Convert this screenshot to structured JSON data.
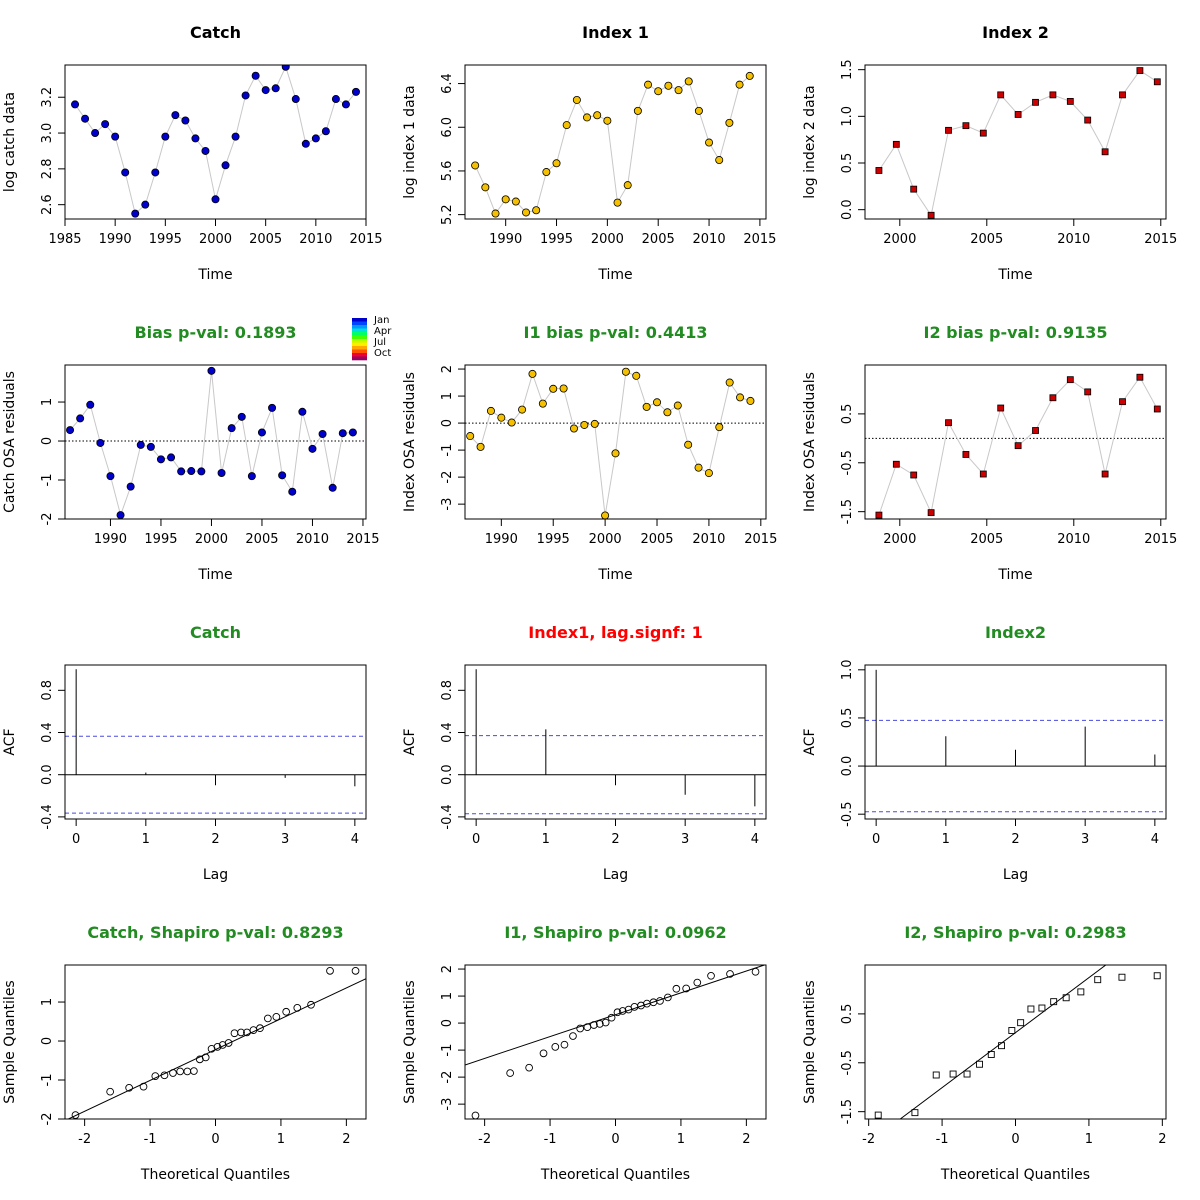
{
  "colors": {
    "catch": "#0000cc",
    "index1": "#f5c000",
    "index2": "#cc0000",
    "title_default": "#000000",
    "title_ok": "#228b22",
    "title_warn": "#ff0000",
    "ci_line": "#4a4ae0",
    "connector": "#c8c8c8"
  },
  "season_legend": {
    "labels": [
      "Jan",
      "Apr",
      "Jul",
      "Oct"
    ],
    "colors": [
      "#0000cc",
      "#0044ff",
      "#0099ff",
      "#00dddd",
      "#00ff66",
      "#44ff00",
      "#bbff00",
      "#ffee00",
      "#ffaa00",
      "#ff5500",
      "#ee0033",
      "#990066"
    ]
  },
  "chart_data": [
    {
      "id": "catch-data",
      "type": "scatter",
      "title": "Catch",
      "title_color": "title_default",
      "xlabel": "Time",
      "ylabel": "log catch data",
      "xlim": [
        1985,
        2015
      ],
      "ylim": [
        2.52,
        3.38
      ],
      "xticks": [
        1985,
        1990,
        1995,
        2000,
        2005,
        2010,
        2015
      ],
      "yticks": [
        2.6,
        2.8,
        3.0,
        3.2
      ],
      "ytick_labels": [
        "2.6",
        "2.8",
        "3.0",
        "3.2"
      ],
      "marker": "circle",
      "color_key": "catch",
      "connect": true,
      "series": [
        {
          "x": [
            1986,
            1987,
            1988,
            1989,
            1990,
            1991,
            1992,
            1993,
            1994,
            1995,
            1996,
            1997,
            1998,
            1999,
            2000,
            2001,
            2002,
            2003,
            2004,
            2005,
            2006,
            2007,
            2008,
            2009,
            2010,
            2011,
            2012,
            2013,
            2014
          ],
          "y": [
            3.16,
            3.08,
            3.0,
            3.05,
            2.98,
            2.78,
            2.55,
            2.6,
            2.78,
            2.98,
            3.1,
            3.07,
            2.97,
            2.9,
            2.63,
            2.82,
            2.98,
            3.21,
            3.32,
            3.24,
            3.25,
            3.37,
            3.19,
            2.94,
            2.97,
            3.01,
            3.19,
            3.16,
            3.23
          ]
        }
      ]
    },
    {
      "id": "index1-data",
      "type": "scatter",
      "title": "Index 1",
      "title_color": "title_default",
      "xlabel": "Time",
      "ylabel": "log index 1 data",
      "xlim": [
        1986,
        2015.6
      ],
      "ylim": [
        5.16,
        6.57
      ],
      "xticks": [
        1990,
        1995,
        2000,
        2005,
        2010,
        2015
      ],
      "yticks": [
        5.2,
        5.6,
        6.0,
        6.4
      ],
      "ytick_labels": [
        "5.2",
        "5.6",
        "6.0",
        "6.4"
      ],
      "marker": "circle",
      "color_key": "index1",
      "connect": true,
      "series": [
        {
          "x": [
            1987,
            1988,
            1989,
            1990,
            1991,
            1992,
            1993,
            1994,
            1995,
            1996,
            1997,
            1998,
            1999,
            2000,
            2001,
            2002,
            2003,
            2004,
            2005,
            2006,
            2007,
            2008,
            2009,
            2010,
            2011,
            2012,
            2013,
            2014
          ],
          "y": [
            5.65,
            5.45,
            5.21,
            5.34,
            5.32,
            5.22,
            5.24,
            5.59,
            5.67,
            6.02,
            6.25,
            6.09,
            6.11,
            6.06,
            5.31,
            5.47,
            6.15,
            6.39,
            6.33,
            6.38,
            6.34,
            6.42,
            6.15,
            5.86,
            5.7,
            6.04,
            6.39,
            6.47
          ]
        }
      ]
    },
    {
      "id": "index2-data",
      "type": "scatter",
      "title": "Index 2",
      "title_color": "title_default",
      "xlabel": "Time",
      "ylabel": "log index 2 data",
      "xlim": [
        1998,
        2015.3
      ],
      "ylim": [
        -0.1,
        1.55
      ],
      "xticks": [
        2000,
        2005,
        2010,
        2015
      ],
      "yticks": [
        0.0,
        0.5,
        1.0,
        1.5
      ],
      "ytick_labels": [
        "0.0",
        "0.5",
        "1.0",
        "1.5"
      ],
      "marker": "square",
      "color_key": "index2",
      "connect": true,
      "series": [
        {
          "x": [
            1998.8,
            1999.8,
            2000.8,
            2001.8,
            2002.8,
            2003.8,
            2004.8,
            2005.8,
            2006.8,
            2007.8,
            2008.8,
            2009.8,
            2010.8,
            2011.8,
            2012.8,
            2013.8,
            2014.8
          ],
          "y": [
            0.42,
            0.7,
            0.22,
            -0.06,
            0.85,
            0.9,
            0.82,
            1.23,
            1.02,
            1.15,
            1.23,
            1.16,
            0.96,
            0.62,
            1.23,
            1.49,
            1.37
          ]
        }
      ]
    },
    {
      "id": "catch-resid",
      "type": "scatter",
      "title": "Bias p-val: 0.1893",
      "title_color": "title_ok",
      "xlabel": "Time",
      "ylabel": "Catch OSA residuals",
      "xlim": [
        1985.5,
        2015.3
      ],
      "ylim": [
        -2.0,
        1.95
      ],
      "xticks": [
        1990,
        1995,
        2000,
        2005,
        2010,
        2015
      ],
      "yticks": [
        -2,
        -1,
        0,
        1
      ],
      "ytick_labels": [
        "-2",
        "-1",
        "0",
        "1"
      ],
      "marker": "circle",
      "color_key": "catch",
      "connect": true,
      "zero_line": true,
      "season_legend": true,
      "series": [
        {
          "x": [
            1986,
            1987,
            1988,
            1989,
            1990,
            1991,
            1992,
            1993,
            1994,
            1995,
            1996,
            1997,
            1998,
            1999,
            2000,
            2001,
            2002,
            2003,
            2004,
            2005,
            2006,
            2007,
            2008,
            2009,
            2010,
            2011,
            2012,
            2013,
            2014
          ],
          "y": [
            0.28,
            0.58,
            0.93,
            -0.05,
            -0.9,
            -1.9,
            -1.17,
            -0.1,
            -0.15,
            -0.47,
            -0.42,
            -0.78,
            -0.77,
            -0.78,
            1.8,
            -0.82,
            0.33,
            0.62,
            -0.9,
            0.22,
            0.85,
            -0.88,
            -1.3,
            0.75,
            -0.2,
            0.18,
            -1.2,
            0.2,
            0.22
          ]
        }
      ]
    },
    {
      "id": "index1-resid",
      "type": "scatter",
      "title": "I1 bias p-val: 0.4413",
      "title_color": "title_ok",
      "xlabel": "Time",
      "ylabel": "Index OSA residuals",
      "xlim": [
        1986.5,
        2015.5
      ],
      "ylim": [
        -3.55,
        2.15
      ],
      "xticks": [
        1990,
        1995,
        2000,
        2005,
        2010,
        2015
      ],
      "yticks": [
        -3,
        -2,
        -1,
        0,
        1,
        2
      ],
      "ytick_labels": [
        "-3",
        "-2",
        "-1",
        "0",
        "1",
        "2"
      ],
      "marker": "circle",
      "color_key": "index1",
      "connect": true,
      "zero_line": true,
      "series": [
        {
          "x": [
            1987,
            1988,
            1989,
            1990,
            1991,
            1992,
            1993,
            1994,
            1995,
            1996,
            1997,
            1998,
            1999,
            2000,
            2001,
            2002,
            2003,
            2004,
            2005,
            2006,
            2007,
            2008,
            2009,
            2010,
            2011,
            2012,
            2013,
            2014
          ],
          "y": [
            -0.48,
            -0.88,
            0.45,
            0.2,
            0.02,
            0.5,
            1.82,
            0.72,
            1.27,
            1.28,
            -0.2,
            -0.07,
            -0.03,
            -3.42,
            -1.12,
            1.9,
            1.75,
            0.6,
            0.77,
            0.4,
            0.65,
            -0.8,
            -1.65,
            -1.85,
            -0.15,
            1.5,
            0.95,
            0.82
          ]
        }
      ]
    },
    {
      "id": "index2-resid",
      "type": "scatter",
      "title": "I2 bias p-val: 0.9135",
      "title_color": "title_ok",
      "xlabel": "Time",
      "ylabel": "Index OSA residuals",
      "xlim": [
        1998,
        2015.3
      ],
      "ylim": [
        -1.65,
        1.5
      ],
      "xticks": [
        2000,
        2005,
        2010,
        2015
      ],
      "yticks": [
        -1.5,
        -0.5,
        0.5
      ],
      "ytick_labels": [
        "-1.5",
        "-0.5",
        "0.5"
      ],
      "marker": "square",
      "color_key": "index2",
      "connect": true,
      "zero_line": true,
      "series": [
        {
          "x": [
            1998.8,
            1999.8,
            2000.8,
            2001.8,
            2002.8,
            2003.8,
            2004.8,
            2005.8,
            2006.8,
            2007.8,
            2008.8,
            2009.8,
            2010.8,
            2011.8,
            2012.8,
            2013.8,
            2014.8
          ],
          "y": [
            -1.57,
            -0.53,
            -0.75,
            -1.52,
            0.32,
            -0.33,
            -0.73,
            0.62,
            -0.15,
            0.16,
            0.83,
            1.2,
            0.95,
            -0.73,
            0.75,
            1.25,
            0.6
          ]
        }
      ]
    },
    {
      "id": "catch-acf",
      "type": "acf",
      "title": "Catch",
      "title_color": "title_ok",
      "xlabel": "Lag",
      "ylabel": "ACF",
      "xlim": [
        -0.16,
        4.16
      ],
      "ylim": [
        -0.42,
        1.04
      ],
      "xticks": [
        0,
        1,
        2,
        3,
        4
      ],
      "yticks": [
        -0.4,
        0.0,
        0.4,
        0.8
      ],
      "ytick_labels": [
        "-0.4",
        "0.0",
        "0.4",
        "0.8"
      ],
      "ci": 0.364,
      "series": [
        {
          "x": [
            0,
            1,
            2,
            3,
            4
          ],
          "y": [
            1.0,
            0.02,
            -0.1,
            -0.03,
            -0.11
          ]
        }
      ]
    },
    {
      "id": "index1-acf",
      "type": "acf",
      "title": "Index1, lag.signf: 1",
      "title_color": "title_warn",
      "xlabel": "Lag",
      "ylabel": "ACF",
      "xlim": [
        -0.16,
        4.16
      ],
      "ylim": [
        -0.42,
        1.04
      ],
      "xticks": [
        0,
        1,
        2,
        3,
        4
      ],
      "yticks": [
        -0.4,
        0.0,
        0.4,
        0.8
      ],
      "ytick_labels": [
        "-0.4",
        "0.0",
        "0.4",
        "0.8"
      ],
      "ci": 0.37,
      "series": [
        {
          "x": [
            0,
            1,
            2,
            3,
            4
          ],
          "y": [
            1.0,
            0.43,
            -0.1,
            -0.19,
            -0.3
          ]
        }
      ]
    },
    {
      "id": "index2-acf",
      "type": "acf",
      "title": "Index2",
      "title_color": "title_ok",
      "xlabel": "Lag",
      "ylabel": "ACF",
      "xlim": [
        -0.16,
        4.16
      ],
      "ylim": [
        -0.55,
        1.05
      ],
      "xticks": [
        0,
        1,
        2,
        3,
        4
      ],
      "yticks": [
        -0.5,
        0.0,
        0.5,
        1.0
      ],
      "ytick_labels": [
        "-0.5",
        "0.0",
        "0.5",
        "1.0"
      ],
      "ci": 0.475,
      "series": [
        {
          "x": [
            0,
            1,
            2,
            3,
            4
          ],
          "y": [
            1.0,
            0.31,
            0.17,
            0.41,
            0.12
          ]
        }
      ]
    },
    {
      "id": "catch-qq",
      "type": "qq",
      "title": "Catch, Shapiro p-val: 0.8293",
      "title_color": "title_ok",
      "xlabel": "Theoretical Quantiles",
      "ylabel": "Sample Quantiles",
      "xlim": [
        -2.3,
        2.3
      ],
      "ylim": [
        -2.0,
        1.95
      ],
      "xticks": [
        -2,
        -1,
        0,
        1,
        2
      ],
      "yticks": [
        -2,
        -1,
        0,
        1
      ],
      "ytick_labels": [
        "-2",
        "-1",
        "0",
        "1"
      ],
      "marker": "circle-open",
      "line": {
        "x": [
          -2.3,
          2.3
        ],
        "y": [
          -2.04,
          1.6
        ]
      },
      "series": [
        {
          "x": [
            -2.14,
            -1.61,
            -1.32,
            -1.1,
            -0.92,
            -0.78,
            -0.65,
            -0.54,
            -0.43,
            -0.33,
            -0.24,
            -0.15,
            -0.06,
            0.03,
            0.11,
            0.2,
            0.29,
            0.39,
            0.48,
            0.58,
            0.68,
            0.8,
            0.93,
            1.08,
            1.25,
            1.46,
            1.75,
            2.14
          ],
          "y": [
            -1.9,
            -1.3,
            -1.2,
            -1.17,
            -0.9,
            -0.88,
            -0.82,
            -0.78,
            -0.78,
            -0.77,
            -0.47,
            -0.42,
            -0.2,
            -0.15,
            -0.1,
            -0.05,
            0.2,
            0.22,
            0.22,
            0.28,
            0.33,
            0.58,
            0.62,
            0.75,
            0.85,
            0.93,
            1.8,
            1.8
          ]
        }
      ]
    },
    {
      "id": "index1-qq",
      "type": "qq",
      "title": "I1, Shapiro p-val: 0.0962",
      "title_color": "title_ok",
      "xlabel": "Theoretical Quantiles",
      "ylabel": "Sample Quantiles",
      "xlim": [
        -2.3,
        2.3
      ],
      "ylim": [
        -3.55,
        2.15
      ],
      "xticks": [
        -2,
        -1,
        0,
        1,
        2
      ],
      "yticks": [
        -3,
        -2,
        -1,
        0,
        1,
        2
      ],
      "ytick_labels": [
        "-3",
        "-2",
        "-1",
        "0",
        "1",
        "2"
      ],
      "marker": "circle-open",
      "line": {
        "x": [
          -2.3,
          2.3
        ],
        "y": [
          -1.55,
          2.17
        ]
      },
      "series": [
        {
          "x": [
            -2.14,
            -1.61,
            -1.32,
            -1.1,
            -0.92,
            -0.78,
            -0.65,
            -0.54,
            -0.43,
            -0.33,
            -0.24,
            -0.15,
            -0.06,
            0.03,
            0.11,
            0.2,
            0.29,
            0.39,
            0.48,
            0.58,
            0.68,
            0.8,
            0.93,
            1.08,
            1.25,
            1.46,
            1.75,
            2.14
          ],
          "y": [
            -3.42,
            -1.85,
            -1.65,
            -1.12,
            -0.88,
            -0.8,
            -0.48,
            -0.2,
            -0.15,
            -0.07,
            -0.03,
            0.02,
            0.2,
            0.4,
            0.45,
            0.5,
            0.6,
            0.65,
            0.72,
            0.77,
            0.82,
            0.95,
            1.27,
            1.28,
            1.5,
            1.75,
            1.82,
            1.9
          ]
        }
      ]
    },
    {
      "id": "index2-qq",
      "type": "qq",
      "title": "I2, Shapiro p-val: 0.2983",
      "title_color": "title_ok",
      "xlabel": "Theoretical Quantiles",
      "ylabel": "Sample Quantiles",
      "xlim": [
        -2.05,
        2.05
      ],
      "ylim": [
        -1.65,
        1.5
      ],
      "xticks": [
        -2,
        -1,
        0,
        1,
        2
      ],
      "yticks": [
        -1.5,
        -0.5,
        0.5
      ],
      "ytick_labels": [
        "-1.5",
        "-0.5",
        "0.5"
      ],
      "marker": "square-open",
      "line": {
        "x": [
          -1.57,
          1.23
        ],
        "y": [
          -1.65,
          1.5
        ]
      },
      "series": [
        {
          "x": [
            -1.87,
            -1.37,
            -1.08,
            -0.85,
            -0.66,
            -0.49,
            -0.33,
            -0.19,
            -0.05,
            0.07,
            0.21,
            0.36,
            0.52,
            0.69,
            0.89,
            1.12,
            1.45,
            1.93
          ],
          "y": [
            -1.57,
            -1.52,
            -0.75,
            -0.73,
            -0.73,
            -0.53,
            -0.33,
            -0.15,
            0.16,
            0.32,
            0.6,
            0.62,
            0.75,
            0.83,
            0.95,
            1.2,
            1.25,
            1.28
          ]
        }
      ]
    }
  ]
}
